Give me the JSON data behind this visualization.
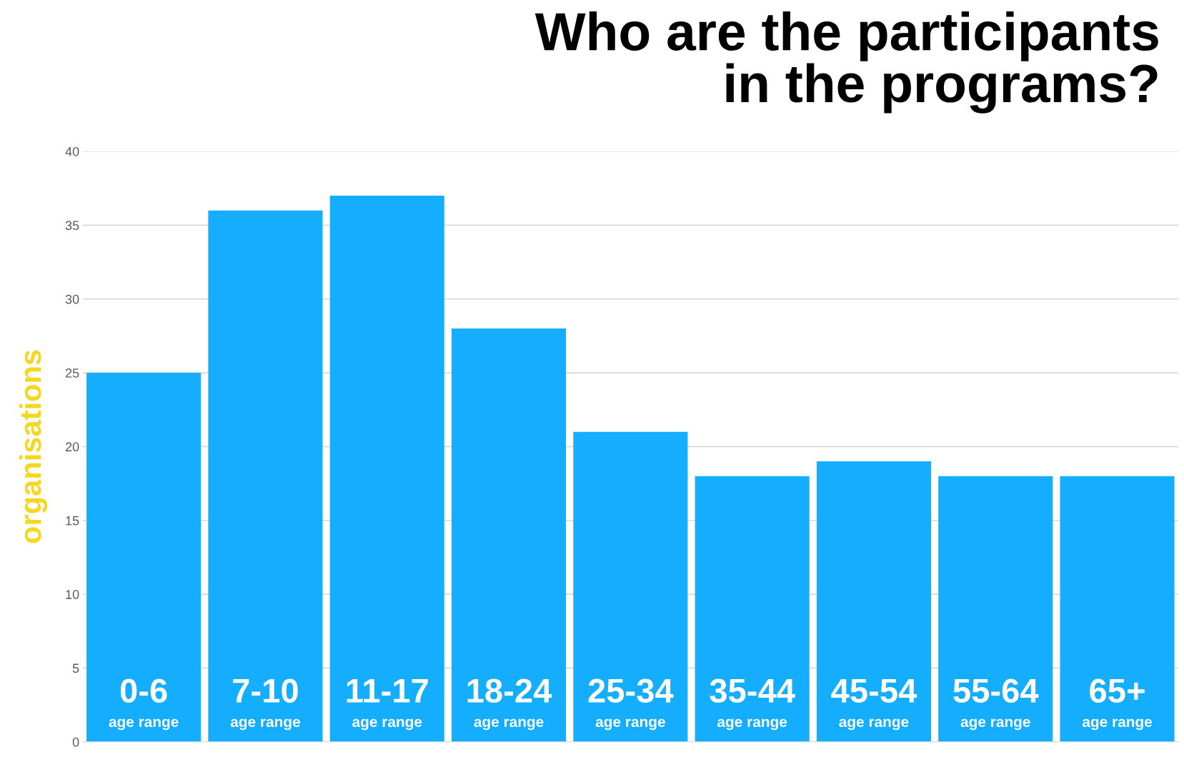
{
  "chart_data": {
    "type": "bar",
    "title": "Who are the participants\nin the programs?",
    "ylabel": "organisations",
    "categories": [
      "0-6\nage range",
      "7-10\nage range",
      "11-17\nage range",
      "18-24\nage range",
      "25-34\nage range",
      "35-44\nage range",
      "45-54\nage range",
      "55-64\nage range",
      "65+\nage range"
    ],
    "values": [
      25,
      36,
      37,
      28,
      21,
      18,
      19,
      18,
      18
    ],
    "color": "#15aefe",
    "ylim": [
      0,
      40
    ],
    "yticks": [
      0,
      5,
      10,
      15,
      20,
      25,
      30,
      35,
      40
    ],
    "grid": "y"
  }
}
